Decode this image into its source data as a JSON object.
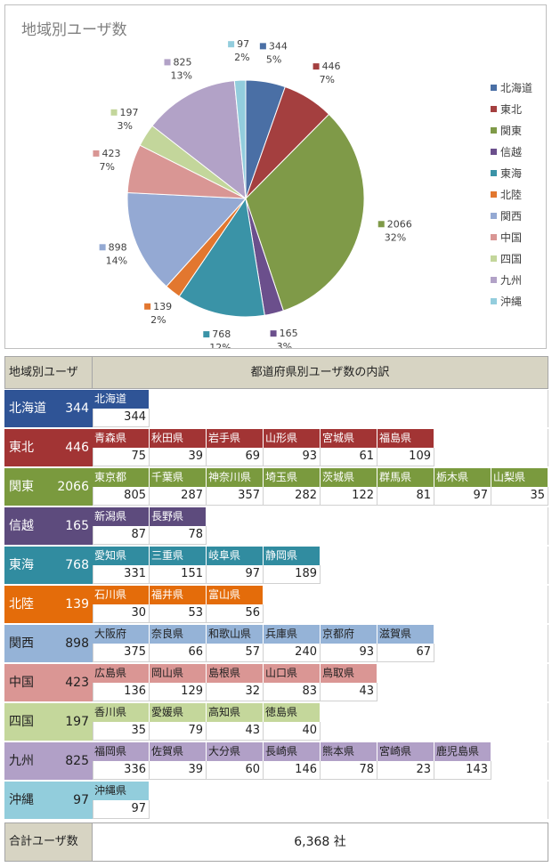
{
  "chart_data": {
    "type": "pie",
    "title": "地域別ユーザ数",
    "legend_position": "right",
    "slices": [
      {
        "name": "北海道",
        "value": 344,
        "percent": "5%",
        "color": "#4a6fa5"
      },
      {
        "name": "東北",
        "value": 446,
        "percent": "7%",
        "color": "#a43f3f"
      },
      {
        "name": "関東",
        "value": 2066,
        "percent": "32%",
        "color": "#7f9a48"
      },
      {
        "name": "信越",
        "value": 165,
        "percent": "3%",
        "color": "#6b4f8c"
      },
      {
        "name": "東海",
        "value": 768,
        "percent": "12%",
        "color": "#3a93a7"
      },
      {
        "name": "北陸",
        "value": 139,
        "percent": "2%",
        "color": "#e2772f"
      },
      {
        "name": "関西",
        "value": 898,
        "percent": "14%",
        "color": "#94a9d3"
      },
      {
        "name": "中国",
        "value": 423,
        "percent": "7%",
        "color": "#d99694"
      },
      {
        "name": "四国",
        "value": 197,
        "percent": "3%",
        "color": "#c3d69b"
      },
      {
        "name": "九州",
        "value": 825,
        "percent": "13%",
        "color": "#b2a2c7"
      },
      {
        "name": "沖縄",
        "value": 97,
        "percent": "2%",
        "color": "#93cddd"
      }
    ]
  },
  "table": {
    "header_left": "地域別ユーザ",
    "header_right": "都道府県別ユーザ数の内訳",
    "total_label": "合計ユーザ数",
    "total_value": "6,368",
    "total_unit": "社",
    "regions": [
      {
        "name": "北海道",
        "value": "344",
        "color": "#2f5496",
        "pref_color": "#2f5496",
        "prefs": [
          {
            "name": "北海道",
            "value": "344"
          }
        ]
      },
      {
        "name": "東北",
        "value": "446",
        "color": "#a23434",
        "pref_color": "#a23434",
        "prefs": [
          {
            "name": "青森県",
            "value": "75"
          },
          {
            "name": "秋田県",
            "value": "39"
          },
          {
            "name": "岩手県",
            "value": "69"
          },
          {
            "name": "山形県",
            "value": "93"
          },
          {
            "name": "宮城県",
            "value": "61"
          },
          {
            "name": "福島県",
            "value": "109"
          }
        ]
      },
      {
        "name": "関東",
        "value": "2066",
        "color": "#7a9a3e",
        "pref_color": "#7a9a3e",
        "prefs": [
          {
            "name": "東京都",
            "value": "805"
          },
          {
            "name": "千葉県",
            "value": "287"
          },
          {
            "name": "神奈川県",
            "value": "357"
          },
          {
            "name": "埼玉県",
            "value": "282"
          },
          {
            "name": "茨城県",
            "value": "122"
          },
          {
            "name": "群馬県",
            "value": "81"
          },
          {
            "name": "栃木県",
            "value": "97"
          },
          {
            "name": "山梨県",
            "value": "35"
          }
        ]
      },
      {
        "name": "信越",
        "value": "165",
        "color": "#5d4b7d",
        "pref_color": "#5d4b7d",
        "prefs": [
          {
            "name": "新潟県",
            "value": "87"
          },
          {
            "name": "長野県",
            "value": "78"
          }
        ]
      },
      {
        "name": "東海",
        "value": "768",
        "color": "#318ca0",
        "pref_color": "#318ca0",
        "prefs": [
          {
            "name": "愛知県",
            "value": "331"
          },
          {
            "name": "三重県",
            "value": "151"
          },
          {
            "name": "岐阜県",
            "value": "97"
          },
          {
            "name": "静岡県",
            "value": "189"
          }
        ]
      },
      {
        "name": "北陸",
        "value": "139",
        "color": "#e46c0a",
        "pref_color": "#e46c0a",
        "prefs": [
          {
            "name": "石川県",
            "value": "30"
          },
          {
            "name": "福井県",
            "value": "53"
          },
          {
            "name": "富山県",
            "value": "56"
          }
        ]
      },
      {
        "name": "関西",
        "value": "898",
        "color": "#95b3d7",
        "pref_color": "#95b3d7",
        "text_dark": true,
        "prefs": [
          {
            "name": "大阪府",
            "value": "375"
          },
          {
            "name": "奈良県",
            "value": "66"
          },
          {
            "name": "和歌山県",
            "value": "57"
          },
          {
            "name": "兵庫県",
            "value": "240"
          },
          {
            "name": "京都府",
            "value": "93"
          },
          {
            "name": "滋賀県",
            "value": "67"
          }
        ]
      },
      {
        "name": "中国",
        "value": "423",
        "color": "#da9694",
        "pref_color": "#da9694",
        "text_dark": true,
        "prefs": [
          {
            "name": "広島県",
            "value": "136"
          },
          {
            "name": "岡山県",
            "value": "129"
          },
          {
            "name": "島根県",
            "value": "32"
          },
          {
            "name": "山口県",
            "value": "83"
          },
          {
            "name": "鳥取県",
            "value": "43"
          }
        ]
      },
      {
        "name": "四国",
        "value": "197",
        "color": "#c4d79b",
        "pref_color": "#c4d79b",
        "text_dark": true,
        "prefs": [
          {
            "name": "香川県",
            "value": "35"
          },
          {
            "name": "愛媛県",
            "value": "79"
          },
          {
            "name": "高知県",
            "value": "43"
          },
          {
            "name": "徳島県",
            "value": "40"
          }
        ]
      },
      {
        "name": "九州",
        "value": "825",
        "color": "#b1a0c7",
        "pref_color": "#b1a0c7",
        "text_dark": true,
        "prefs": [
          {
            "name": "福岡県",
            "value": "336"
          },
          {
            "name": "佐賀県",
            "value": "39"
          },
          {
            "name": "大分県",
            "value": "60"
          },
          {
            "name": "長崎県",
            "value": "146"
          },
          {
            "name": "熊本県",
            "value": "78"
          },
          {
            "name": "宮崎県",
            "value": "23"
          },
          {
            "name": "鹿児島県",
            "value": "143"
          }
        ]
      },
      {
        "name": "沖縄",
        "value": "97",
        "color": "#92cddc",
        "pref_color": "#92cddc",
        "text_dark": true,
        "prefs": [
          {
            "name": "沖縄県",
            "value": "97"
          }
        ]
      }
    ]
  }
}
